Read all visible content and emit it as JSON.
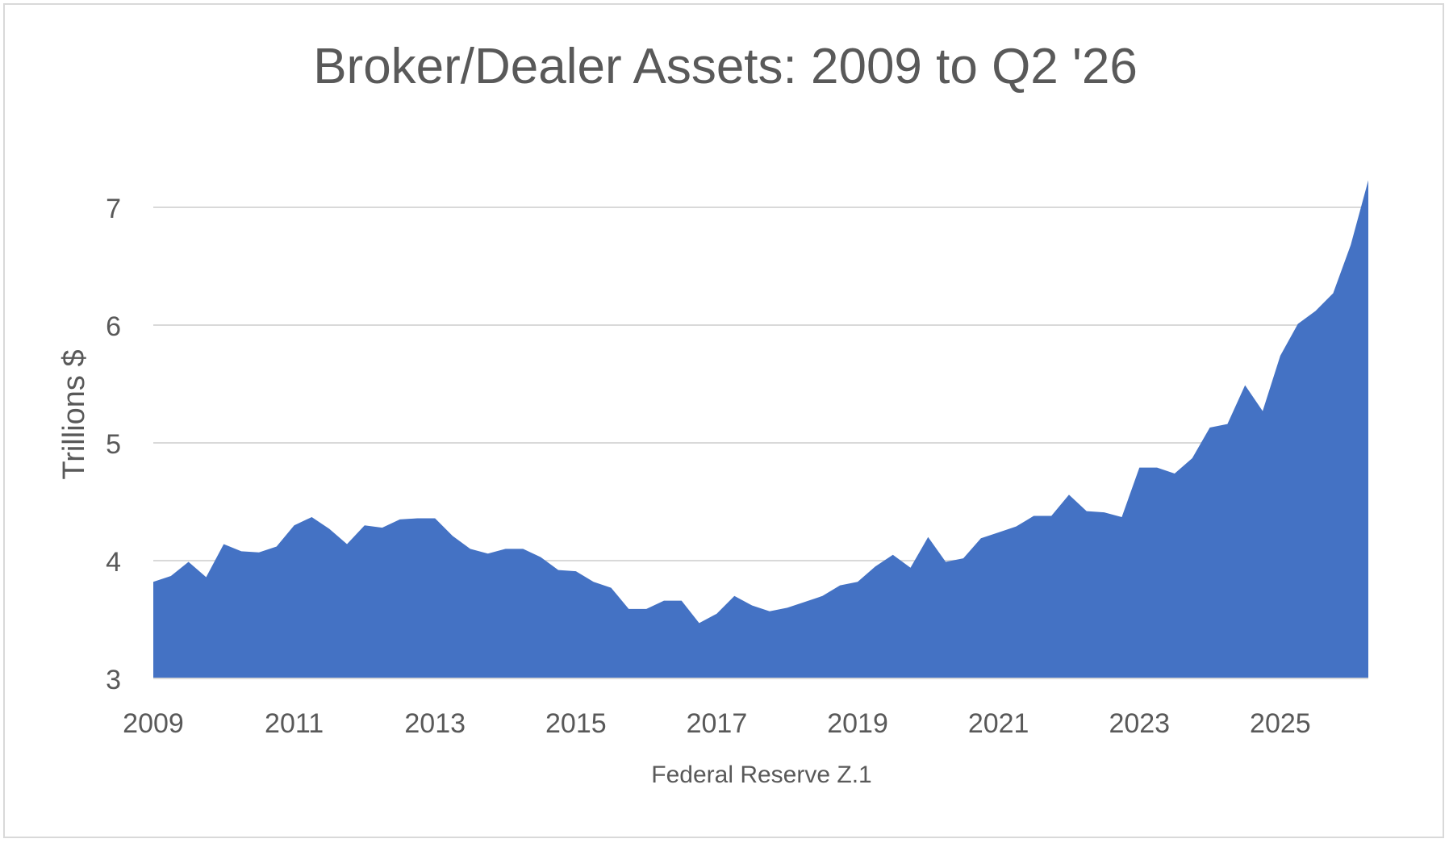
{
  "chart_data": {
    "type": "area",
    "title": "Broker/Dealer Assets: 2009 to Q2 '26",
    "xlabel": "Federal Reserve Z.1",
    "ylabel": "Trillions $",
    "ylim": [
      3,
      7.3
    ],
    "yticks": [
      3,
      4,
      5,
      6,
      7
    ],
    "xlim": [
      2009,
      2026.25
    ],
    "xticks": [
      2009,
      2011,
      2013,
      2015,
      2017,
      2019,
      2021,
      2023,
      2025
    ],
    "grid": "horizontal",
    "legend": "none",
    "colors": {
      "area": "#4472c4",
      "grid": "#d9d9d9",
      "text": "#595959"
    },
    "series": [
      {
        "x": [
          2009.0,
          2009.25,
          2009.5,
          2009.75,
          2010.0,
          2010.25,
          2010.5,
          2010.75,
          2011.0,
          2011.25,
          2011.5,
          2011.75,
          2012.0,
          2012.25,
          2012.5,
          2012.75,
          2013.0,
          2013.25,
          2013.5,
          2013.75,
          2014.0,
          2014.25,
          2014.5,
          2014.75,
          2015.0,
          2015.25,
          2015.5,
          2015.75,
          2016.0,
          2016.25,
          2016.5,
          2016.75,
          2017.0,
          2017.25,
          2017.5,
          2017.75,
          2018.0,
          2018.25,
          2018.5,
          2018.75,
          2019.0,
          2019.25,
          2019.5,
          2019.75,
          2020.0,
          2020.25,
          2020.5,
          2020.75,
          2021.0,
          2021.25,
          2021.5,
          2021.75,
          2022.0,
          2022.25,
          2022.5,
          2022.75,
          2023.0,
          2023.25,
          2023.5,
          2023.75,
          2024.0,
          2024.25,
          2024.5,
          2024.75,
          2025.0,
          2025.25,
          2025.5,
          2025.75,
          2026.0,
          2026.25
        ],
        "values": [
          3.82,
          3.87,
          3.99,
          3.86,
          4.14,
          4.08,
          4.07,
          4.12,
          4.3,
          4.37,
          4.27,
          4.14,
          4.3,
          4.28,
          4.35,
          4.36,
          4.36,
          4.21,
          4.1,
          4.06,
          4.1,
          4.1,
          4.03,
          3.92,
          3.91,
          3.82,
          3.77,
          3.59,
          3.59,
          3.66,
          3.66,
          3.47,
          3.55,
          3.7,
          3.62,
          3.57,
          3.6,
          3.65,
          3.7,
          3.79,
          3.82,
          3.95,
          4.05,
          3.94,
          4.2,
          3.99,
          4.02,
          4.19,
          4.24,
          4.29,
          4.38,
          4.38,
          4.56,
          4.42,
          4.41,
          4.37,
          4.79,
          4.79,
          4.74,
          4.87,
          5.13,
          5.16,
          5.49,
          5.27,
          5.74,
          6.01,
          6.12,
          6.27,
          6.68,
          7.23
        ]
      }
    ]
  }
}
